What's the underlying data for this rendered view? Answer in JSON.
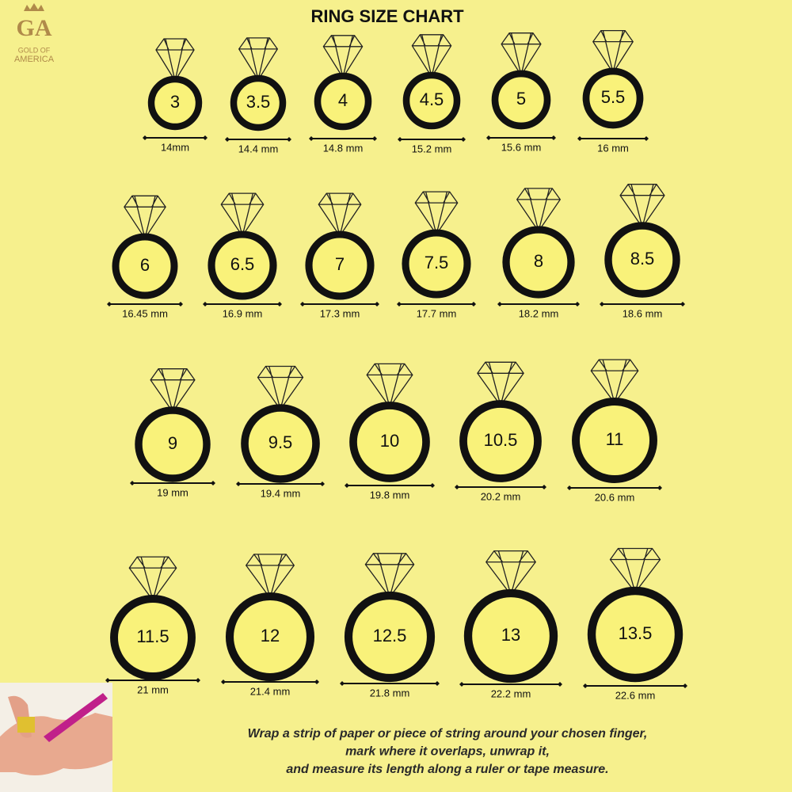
{
  "header": {
    "title": "RING SIZE CHART",
    "logo": {
      "mark": "GA",
      "line1": "GOLD OF",
      "line2": "AMERICA"
    }
  },
  "rings": [
    {
      "size": "3",
      "diameter": "14mm"
    },
    {
      "size": "3.5",
      "diameter": "14.4 mm"
    },
    {
      "size": "4",
      "diameter": "14.8 mm"
    },
    {
      "size": "4.5",
      "diameter": "15.2 mm"
    },
    {
      "size": "5",
      "diameter": "15.6 mm"
    },
    {
      "size": "5.5",
      "diameter": "16 mm"
    },
    {
      "size": "6",
      "diameter": "16.45 mm"
    },
    {
      "size": "6.5",
      "diameter": "16.9 mm"
    },
    {
      "size": "7",
      "diameter": "17.3 mm"
    },
    {
      "size": "7.5",
      "diameter": "17.7 mm"
    },
    {
      "size": "8",
      "diameter": "18.2 mm"
    },
    {
      "size": "8.5",
      "diameter": "18.6 mm"
    },
    {
      "size": "9",
      "diameter": "19 mm"
    },
    {
      "size": "9.5",
      "diameter": "19.4 mm"
    },
    {
      "size": "10",
      "diameter": "19.8 mm"
    },
    {
      "size": "10.5",
      "diameter": "20.2 mm"
    },
    {
      "size": "11",
      "diameter": "20.6 mm"
    },
    {
      "size": "11.5",
      "diameter": "21 mm"
    },
    {
      "size": "12",
      "diameter": "21.4 mm"
    },
    {
      "size": "12.5",
      "diameter": "21.8 mm"
    },
    {
      "size": "13",
      "diameter": "22.2 mm"
    },
    {
      "size": "13.5",
      "diameter": "22.6 mm"
    }
  ],
  "instructions": [
    "Wrap a strip of paper or piece of string around your chosen finger,",
    "mark where it overlaps, unwrap it,",
    "and measure its length along a ruler or tape measure."
  ]
}
